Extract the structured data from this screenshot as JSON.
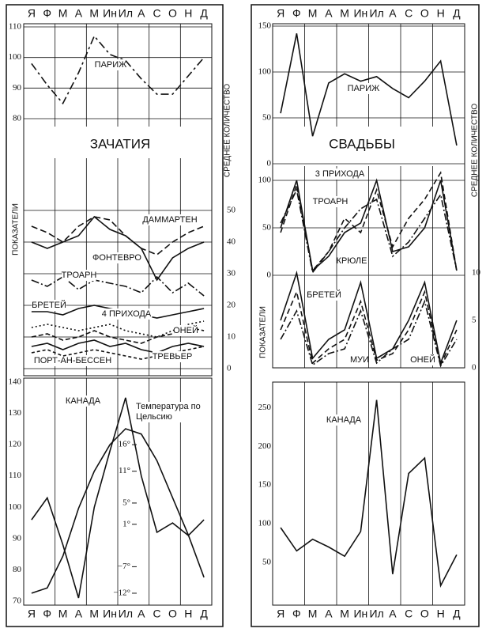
{
  "panels": [
    {
      "title": "ЗАЧАТИЯ",
      "side_label": "СРЕДНЕЕ КОЛИЧЕСТВО",
      "axis_label": "ПОКАЗАТЕЛИ"
    },
    {
      "title": "СВАДЬБЫ",
      "side_label": "СРЕДНЕЕ КОЛИЧЕСТВО",
      "axis_label": "ПОКАЗАТЕЛИ"
    }
  ],
  "chart_data": [
    {
      "type": "line",
      "categories": [
        "Я",
        "Ф",
        "М",
        "А",
        "М",
        "Ин",
        "Ил",
        "А",
        "С",
        "О",
        "Н",
        "Д"
      ],
      "ylim": [
        80,
        110
      ],
      "yticks": [
        80,
        90,
        100,
        110
      ],
      "grid": true,
      "series": [
        {
          "name": "ПАРИЖ",
          "color": "#111",
          "dash": "10,4,3,4",
          "values": [
            98,
            91,
            85,
            95,
            107,
            101,
            99,
            93,
            88,
            88,
            94,
            100
          ]
        }
      ]
    },
    {
      "type": "line",
      "ylim": [
        0,
        50
      ],
      "yticks": [
        0,
        10,
        20,
        30,
        40,
        50
      ],
      "grid": true,
      "series": [
        {
          "name": "ДАММАРТЕН",
          "color": "#111",
          "dash": "8,4",
          "values": [
            45,
            43,
            40,
            45,
            48,
            47,
            42,
            38,
            36,
            40,
            43,
            45
          ]
        },
        {
          "name": "ФОНТЕВРО",
          "color": "#111",
          "dash": "none",
          "values": [
            40,
            38,
            40,
            42,
            48,
            44,
            42,
            38,
            28,
            35,
            38,
            40
          ]
        },
        {
          "name": "ТРОАРН",
          "color": "#111",
          "dash": "10,3,2,3",
          "values": [
            28,
            26,
            29,
            25,
            28,
            27,
            26,
            24,
            29,
            24,
            27,
            23
          ]
        },
        {
          "name": "БРЕТЕЙ",
          "color": "#111",
          "dash": "none",
          "values": [
            18,
            18,
            17,
            19,
            20,
            19,
            18,
            17,
            16,
            17,
            18,
            19
          ]
        },
        {
          "name": "4 ПРИХОДА",
          "color": "#111",
          "dash": "2,3",
          "values": [
            13,
            14,
            13,
            12,
            13,
            14,
            12,
            11,
            10,
            12,
            14,
            15
          ]
        },
        {
          "name": "ОНЕЙ",
          "color": "#111",
          "dash": "6,3",
          "values": [
            10,
            11,
            9,
            10,
            12,
            10,
            9,
            8,
            10,
            11,
            13,
            12
          ]
        },
        {
          "name": "ПОРТ-АН-БЕССЕН",
          "color": "#111",
          "dash": "none",
          "values": [
            7,
            8,
            6,
            8,
            9,
            7,
            8,
            6,
            5,
            7,
            8,
            7
          ]
        },
        {
          "name": "ТРЕВЬЕР",
          "color": "#111",
          "dash": "4,3",
          "values": [
            5,
            6,
            4,
            5,
            6,
            5,
            4,
            3,
            4,
            5,
            6,
            7
          ]
        }
      ]
    },
    {
      "type": "line",
      "categories": [
        "Я",
        "Ф",
        "М",
        "А",
        "М",
        "Ин",
        "Ил",
        "А",
        "С",
        "О",
        "Н",
        "Д"
      ],
      "ylim": [
        70,
        140
      ],
      "yticks": [
        70,
        80,
        90,
        100,
        110,
        120,
        130,
        140
      ],
      "grid": false,
      "y2lim": [
        -13.5,
        27.8
      ],
      "y2ticks": [
        {
          "value": -12,
          "label": "−12°"
        },
        {
          "value": -7,
          "label": "−7°"
        },
        {
          "value": 1,
          "label": "1°"
        },
        {
          "value": 5,
          "label": "5°"
        },
        {
          "value": 11,
          "label": "11°"
        },
        {
          "value": 16,
          "label": "16°"
        }
      ],
      "series": [
        {
          "name": "КАНАДА",
          "color": "#111",
          "dash": "none",
          "values": [
            96,
            103,
            88,
            71,
            100,
            118,
            135,
            110,
            92,
            95,
            91,
            96
          ]
        },
        {
          "name": "Температура по Цельсию",
          "color": "#111",
          "dash": "none",
          "axis": "y2",
          "values": [
            -12,
            -11,
            -5,
            4,
            11,
            16,
            19,
            18,
            13,
            6,
            -1,
            -9
          ]
        }
      ]
    },
    {
      "type": "line",
      "categories": [
        "Я",
        "Ф",
        "М",
        "А",
        "М",
        "Ин",
        "Ил",
        "А",
        "С",
        "О",
        "Н",
        "Д"
      ],
      "ylim": [
        0,
        150
      ],
      "yticks": [
        0,
        50,
        100,
        150
      ],
      "grid": true,
      "series": [
        {
          "name": "ПАРИЖ",
          "color": "#111",
          "dash": "none",
          "values": [
            55,
            142,
            30,
            88,
            98,
            90,
            95,
            82,
            72,
            90,
            112,
            20
          ]
        }
      ]
    },
    {
      "type": "line",
      "ylim": [
        0,
        100
      ],
      "yticks": [
        0,
        50,
        100
      ],
      "grid": true,
      "series": [
        {
          "name": "3 ПРИХОДА",
          "color": "#111",
          "dash": "none",
          "values": [
            50,
            100,
            5,
            20,
            45,
            55,
            100,
            25,
            30,
            50,
            100,
            5
          ]
        },
        {
          "name": "ТРОАРН",
          "color": "#111",
          "dash": "7,4",
          "values": [
            45,
            95,
            5,
            25,
            60,
            45,
            90,
            30,
            60,
            80,
            108,
            5
          ]
        },
        {
          "name": "КРЮЛЕ",
          "color": "#111",
          "dash": "9,3,2,3",
          "values": [
            55,
            90,
            3,
            25,
            50,
            70,
            80,
            20,
            35,
            60,
            85,
            5
          ]
        }
      ]
    },
    {
      "type": "line",
      "ylim": [
        0,
        10
      ],
      "yticks": [
        0,
        5,
        10
      ],
      "grid": false,
      "series": [
        {
          "name": "БРЕТЕЙ",
          "color": "#111",
          "dash": "none",
          "values": [
            5,
            10,
            1,
            3,
            4,
            9,
            1,
            2,
            5,
            9,
            0.5,
            5
          ]
        },
        {
          "name": "МУИ",
          "color": "#111",
          "dash": "7,4",
          "values": [
            4,
            8,
            0.5,
            2,
            3,
            7,
            0.8,
            1.5,
            4,
            8,
            0.3,
            4
          ]
        },
        {
          "name": "ОНЕЙ",
          "color": "#111",
          "dash": "9,3,2,3",
          "values": [
            3,
            6,
            0.3,
            1.5,
            2,
            6,
            0.5,
            2,
            3,
            7,
            0.2,
            3
          ]
        }
      ]
    },
    {
      "type": "line",
      "categories": [
        "Я",
        "Ф",
        "М",
        "А",
        "М",
        "Ин",
        "Ил",
        "А",
        "С",
        "О",
        "Н",
        "Д"
      ],
      "ylim": [
        0,
        280
      ],
      "yticks": [
        50,
        100,
        150,
        200,
        250
      ],
      "grid": false,
      "series": [
        {
          "name": "КАНАДА",
          "color": "#111",
          "dash": "none",
          "values": [
            95,
            65,
            80,
            70,
            58,
            90,
            260,
            35,
            165,
            185,
            20,
            60
          ]
        }
      ]
    }
  ]
}
